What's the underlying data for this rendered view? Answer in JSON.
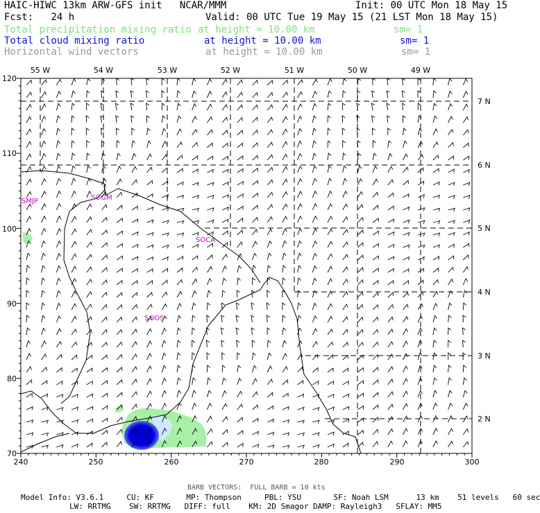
{
  "header": {
    "title_left": "HAIC-HIWC 13km ARW-GFS init   NCAR/MMM",
    "init": "Init: 00 UTC Mon 18 May 15",
    "fcst": "Fcst:   24 h",
    "valid": "Valid: 00 UTC Tue 19 May 15 (21 LST Mon 18 May 15)",
    "fields": [
      {
        "name": "Total precipitation mixing ratio",
        "height": "at height = 10.00 km",
        "sm": "sm= 1",
        "color": "#7fe07f"
      },
      {
        "name": "Total cloud mixing ratio",
        "height": "at height = 10.00 km",
        "sm": "sm= 1",
        "color": "#1010d0"
      },
      {
        "name": "Horizontal wind vectors",
        "height": "at height = 10.00 km",
        "sm": "sm= 1",
        "color": "#9a9a9a"
      }
    ]
  },
  "map": {
    "x_ticks": [
      "240",
      "250",
      "260",
      "270",
      "280",
      "290",
      "300"
    ],
    "y_ticks": [
      "70",
      "80",
      "90",
      "100",
      "110",
      "120"
    ],
    "lon_labels": [
      "55 W",
      "54 W",
      "53 W",
      "52 W",
      "51 W",
      "50 W",
      "49 W"
    ],
    "lat_labels": [
      "2 N",
      "3 N",
      "4 N",
      "5 N",
      "6 N",
      "7 N"
    ],
    "stations": [
      "SMJP",
      "SOGM",
      "SOCA",
      "SOOS"
    ],
    "colors": {
      "precip": "#a8f0a8",
      "cloud": "#0000c8",
      "barb": "#000000",
      "grid": "#000000",
      "station": "#c000c0"
    }
  },
  "footer": {
    "barb_note": "BARB VECTORS:  FULL BARB = 10 kts",
    "model_line1": "Model Info: V3.6.1     CU: KF       MP: Thompson     PBL: YSU       SF: Noah LSM      13 km    51 levels   60 sec",
    "model_line2": "LW: RRTMG    SW: RRTMG   DIFF: full    KM: 2D Smagor DAMP: Rayleigh3   SFLAY: MM5"
  }
}
